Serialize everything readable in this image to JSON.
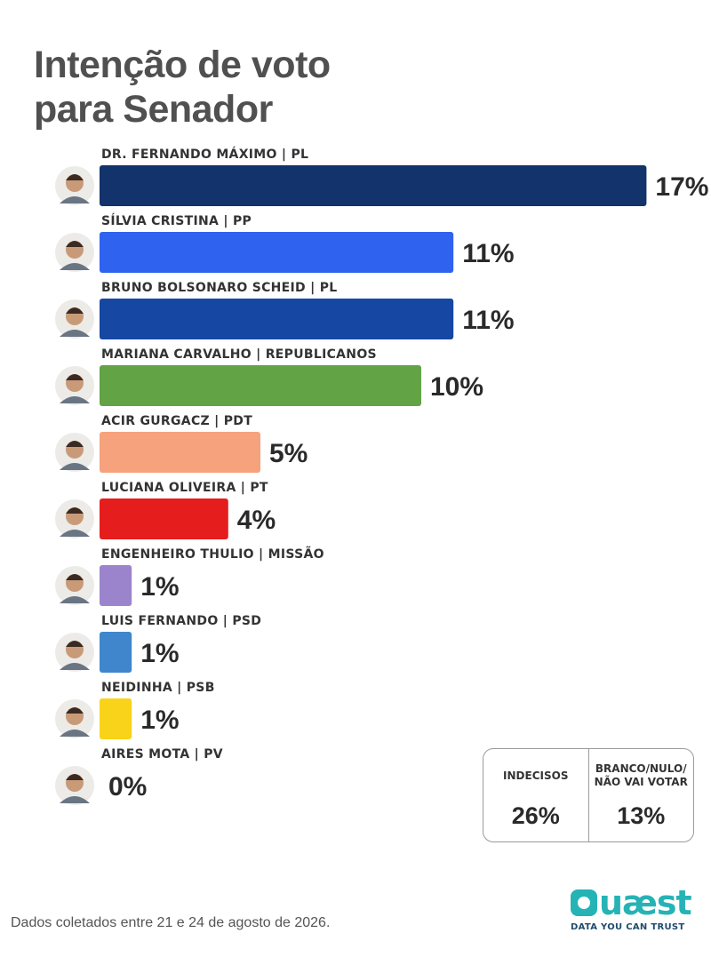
{
  "title": {
    "line1": "Intenção de voto",
    "line2": "para Senador"
  },
  "chart_data": {
    "type": "bar",
    "orientation": "horizontal",
    "title": "Intenção de voto para Senador",
    "categories": [
      "DR. FERNANDO MÁXIMO | PL",
      "SÍLVIA CRISTINA | PP",
      "BRUNO BOLSONARO SCHEID | PL",
      "MARIANA CARVALHO | REPUBLICANOS",
      "ACIR GURGACZ | PDT",
      "LUCIANA OLIVEIRA | PT",
      "ENGENHEIRO THULIO | MISSÃO",
      "LUIS FERNANDO | PSD",
      "NEIDINHA | PSB",
      "AIRES MOTA | PV"
    ],
    "values": [
      17,
      11,
      11,
      10,
      5,
      4,
      1,
      1,
      1,
      0
    ],
    "value_labels": [
      "17%",
      "11%",
      "11%",
      "10%",
      "5%",
      "4%",
      "1%",
      "1%",
      "1%",
      "0%"
    ],
    "colors": [
      "#12336b",
      "#2f62ee",
      "#1547a3",
      "#62a345",
      "#f6a27d",
      "#e51d1d",
      "#9b84cc",
      "#3f86cc",
      "#f8d31a",
      "#cccccc"
    ],
    "value_unit": "%"
  },
  "summary": {
    "indecisos_label": "INDECISOS",
    "indecisos_value": "26%",
    "branco_label_line1": "BRANCO/NULO/",
    "branco_label_line2": "NÃO VAI VOTAR",
    "branco_value": "13%"
  },
  "footnote": "Dados coletados entre 21 e 24 de agosto de 2026.",
  "logo": {
    "name": "quaest-logo",
    "wordmark": "uæst",
    "tagline": "DATA YOU CAN TRUST",
    "color": "#26b3b5"
  }
}
